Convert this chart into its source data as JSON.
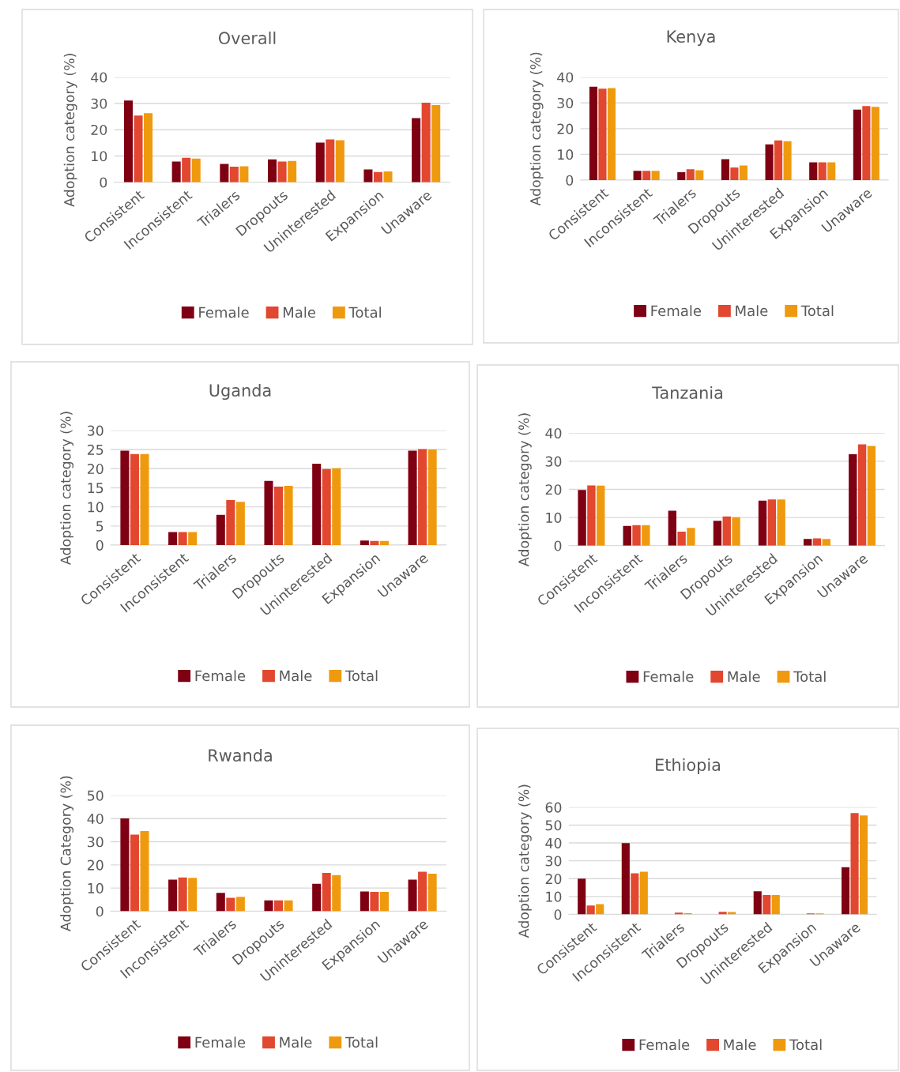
{
  "chart_data": [
    {
      "type": "bar",
      "title": "Overall",
      "ylabel": "Adoption category (%)",
      "categories": [
        "Consistent",
        "Inconsistent",
        "Trialers",
        "Dropouts",
        "Uninterested",
        "Expansion",
        "Unaware"
      ],
      "ylim": [
        0,
        40
      ],
      "yticks": [
        0,
        10,
        20,
        30,
        40
      ],
      "grid": "y",
      "legend": "bottom",
      "series": [
        {
          "name": "Female",
          "color": "#7f0012",
          "values": [
            31.1,
            7.9,
            7.0,
            8.7,
            15.1,
            4.9,
            24.4
          ]
        },
        {
          "name": "Male",
          "color": "#e2472f",
          "values": [
            25.4,
            9.3,
            5.9,
            7.9,
            16.3,
            3.9,
            30.3
          ]
        },
        {
          "name": "Total",
          "color": "#ef9a0e",
          "values": [
            26.3,
            9.0,
            6.1,
            8.1,
            16.0,
            4.1,
            29.4
          ]
        }
      ]
    },
    {
      "type": "bar",
      "title": "Kenya",
      "ylabel": "Adoption category (%)",
      "categories": [
        "Consistent",
        "Inconsistent",
        "Trialers",
        "Dropouts",
        "Uninterested",
        "Expansion",
        "Unaware"
      ],
      "ylim": [
        0,
        40
      ],
      "yticks": [
        0,
        10,
        20,
        30,
        40
      ],
      "grid": "y",
      "legend": "bottom",
      "series": [
        {
          "name": "Female",
          "color": "#7f0012",
          "values": [
            36.3,
            3.6,
            3.1,
            8.1,
            13.9,
            6.9,
            27.4
          ]
        },
        {
          "name": "Male",
          "color": "#e2472f",
          "values": [
            35.5,
            3.6,
            4.2,
            4.9,
            15.4,
            6.9,
            28.8
          ]
        },
        {
          "name": "Total",
          "color": "#ef9a0e",
          "values": [
            35.8,
            3.6,
            3.8,
            5.7,
            15.1,
            6.9,
            28.5
          ]
        }
      ]
    },
    {
      "type": "bar",
      "title": "Uganda",
      "ylabel": "Adoption category (%)",
      "categories": [
        "Consistent",
        "Inconsistent",
        "Trialers",
        "Dropouts",
        "Uninterested",
        "Expansion",
        "Unaware"
      ],
      "ylim": [
        0,
        30
      ],
      "yticks": [
        0,
        5,
        10,
        15,
        20,
        25,
        30
      ],
      "grid": "y",
      "legend": "bottom",
      "series": [
        {
          "name": "Female",
          "color": "#7f0012",
          "values": [
            24.7,
            3.4,
            7.9,
            16.8,
            21.3,
            1.2,
            24.7
          ]
        },
        {
          "name": "Male",
          "color": "#e2472f",
          "values": [
            23.8,
            3.4,
            11.8,
            15.3,
            19.9,
            1.1,
            25.1
          ]
        },
        {
          "name": "Total",
          "color": "#ef9a0e",
          "values": [
            23.8,
            3.4,
            11.3,
            15.5,
            20.1,
            1.1,
            25.0
          ]
        }
      ]
    },
    {
      "type": "bar",
      "title": "Tanzania",
      "ylabel": "Adoption category (%)",
      "categories": [
        "Consistent",
        "Inconsistent",
        "Trialers",
        "Dropouts",
        "Uninterested",
        "Expansion",
        "Unaware"
      ],
      "ylim": [
        0,
        40
      ],
      "yticks": [
        0,
        10,
        20,
        30,
        40
      ],
      "grid": "y",
      "legend": "bottom",
      "series": [
        {
          "name": "Female",
          "color": "#7f0012",
          "values": [
            19.8,
            7.0,
            12.4,
            8.8,
            16.0,
            2.4,
            32.5
          ]
        },
        {
          "name": "Male",
          "color": "#e2472f",
          "values": [
            21.4,
            7.3,
            5.0,
            10.4,
            16.4,
            2.6,
            36.0
          ]
        },
        {
          "name": "Total",
          "color": "#ef9a0e",
          "values": [
            21.3,
            7.3,
            6.3,
            10.1,
            16.4,
            2.4,
            35.4
          ]
        }
      ]
    },
    {
      "type": "bar",
      "title": "Rwanda",
      "ylabel": "Adoption Category (%)",
      "categories": [
        "Consistent",
        "Inconsistent",
        "Trialers",
        "Dropouts",
        "Uninterested",
        "Expansion",
        "Unaware"
      ],
      "ylim": [
        0,
        50
      ],
      "yticks": [
        0,
        10,
        20,
        30,
        40,
        50
      ],
      "grid": "y",
      "legend": "bottom",
      "series": [
        {
          "name": "Female",
          "color": "#7f0012",
          "values": [
            40.1,
            13.6,
            7.9,
            4.7,
            11.8,
            8.5,
            13.6
          ]
        },
        {
          "name": "Male",
          "color": "#e2472f",
          "values": [
            33.1,
            14.6,
            5.8,
            4.7,
            16.5,
            8.3,
            17.0
          ]
        },
        {
          "name": "Total",
          "color": "#ef9a0e",
          "values": [
            34.6,
            14.4,
            6.2,
            4.7,
            15.6,
            8.3,
            16.2
          ]
        }
      ]
    },
    {
      "type": "bar",
      "title": "Ethiopia",
      "ylabel": "Adoption category (%)",
      "categories": [
        "Consistent",
        "Inconsistent",
        "Trialers",
        "Dropouts",
        "Uninterested",
        "Expansion",
        "Unaware"
      ],
      "ylim": [
        0,
        60
      ],
      "yticks": [
        0,
        10,
        20,
        30,
        40,
        50,
        60
      ],
      "grid": "y",
      "legend": "bottom",
      "series": [
        {
          "name": "Female",
          "color": "#7f0012",
          "values": [
            20.0,
            39.9,
            0,
            0,
            12.9,
            0,
            26.4
          ]
        },
        {
          "name": "Male",
          "color": "#e2472f",
          "values": [
            5.0,
            23.0,
            1.0,
            1.5,
            10.8,
            0.6,
            56.7
          ]
        },
        {
          "name": "Total",
          "color": "#ef9a0e",
          "values": [
            5.8,
            23.9,
            0.7,
            1.3,
            10.8,
            0.6,
            55.4
          ]
        }
      ]
    }
  ]
}
